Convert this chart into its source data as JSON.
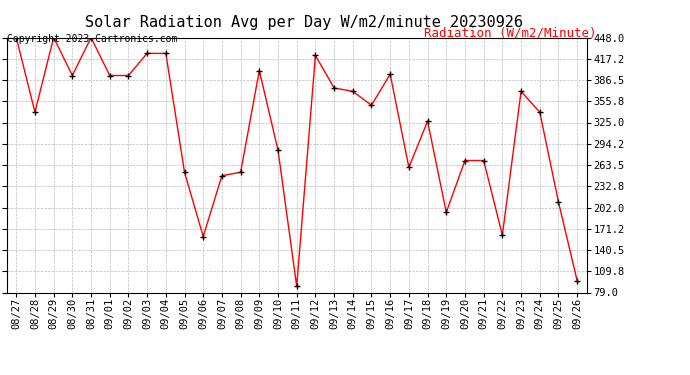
{
  "title": "Solar Radiation Avg per Day W/m2/minute 20230926",
  "copyright": "Copyright 2023 Cartronics.com",
  "ylabel": "Radiation (W/m2/Minute)",
  "dates": [
    "08/27",
    "08/28",
    "08/29",
    "08/30",
    "08/31",
    "09/01",
    "09/02",
    "09/03",
    "09/04",
    "09/05",
    "09/06",
    "09/07",
    "09/08",
    "09/09",
    "09/10",
    "09/11",
    "09/12",
    "09/13",
    "09/14",
    "09/15",
    "09/16",
    "09/17",
    "09/18",
    "09/19",
    "09/20",
    "09/21",
    "09/22",
    "09/23",
    "09/24",
    "09/25",
    "09/26"
  ],
  "values": [
    448.0,
    340.0,
    448.0,
    393.0,
    448.0,
    393.0,
    393.0,
    425.0,
    425.0,
    253.0,
    160.0,
    248.0,
    253.0,
    400.0,
    285.0,
    88.0,
    422.0,
    375.0,
    370.0,
    350.0,
    395.0,
    260.0,
    327.0,
    195.0,
    270.0,
    270.0,
    162.0,
    370.0,
    340.0,
    210.0,
    96.0
  ],
  "line_color": "red",
  "marker": "+",
  "marker_color": "black",
  "bg_color": "white",
  "grid_color": "#bbbbbb",
  "ylim_min": 79.0,
  "ylim_max": 448.0,
  "yticks": [
    79.0,
    109.8,
    140.5,
    171.2,
    202.0,
    232.8,
    263.5,
    294.2,
    325.0,
    355.8,
    386.5,
    417.2,
    448.0
  ],
  "title_fontsize": 11,
  "ylabel_fontsize": 9,
  "copyright_fontsize": 7,
  "tick_fontsize": 7.5
}
